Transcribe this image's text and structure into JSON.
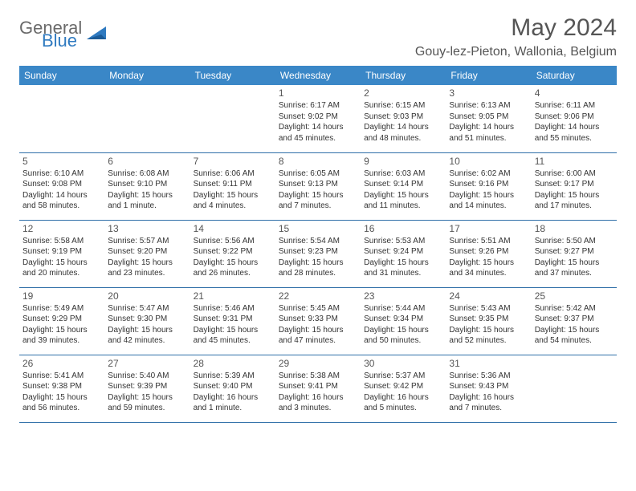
{
  "logo": {
    "text_general": "General",
    "text_blue": "Blue"
  },
  "title": "May 2024",
  "location": "Gouy-lez-Pieton, Wallonia, Belgium",
  "colors": {
    "header_bg": "#3a87c7",
    "header_text": "#ffffff",
    "cell_border": "#2f6fa8",
    "body_text": "#333333",
    "title_text": "#555555",
    "logo_gray": "#6a6a6a",
    "logo_blue": "#2f7ac0"
  },
  "fonts": {
    "title_size_pt": 23,
    "location_size_pt": 12,
    "weekday_size_pt": 9,
    "daynum_size_pt": 9,
    "body_size_pt": 7.5
  },
  "weekdays": [
    "Sunday",
    "Monday",
    "Tuesday",
    "Wednesday",
    "Thursday",
    "Friday",
    "Saturday"
  ],
  "weeks": [
    [
      null,
      null,
      null,
      {
        "n": "1",
        "sr": "6:17 AM",
        "ss": "9:02 PM",
        "dl": "14 hours and 45 minutes."
      },
      {
        "n": "2",
        "sr": "6:15 AM",
        "ss": "9:03 PM",
        "dl": "14 hours and 48 minutes."
      },
      {
        "n": "3",
        "sr": "6:13 AM",
        "ss": "9:05 PM",
        "dl": "14 hours and 51 minutes."
      },
      {
        "n": "4",
        "sr": "6:11 AM",
        "ss": "9:06 PM",
        "dl": "14 hours and 55 minutes."
      }
    ],
    [
      {
        "n": "5",
        "sr": "6:10 AM",
        "ss": "9:08 PM",
        "dl": "14 hours and 58 minutes."
      },
      {
        "n": "6",
        "sr": "6:08 AM",
        "ss": "9:10 PM",
        "dl": "15 hours and 1 minute."
      },
      {
        "n": "7",
        "sr": "6:06 AM",
        "ss": "9:11 PM",
        "dl": "15 hours and 4 minutes."
      },
      {
        "n": "8",
        "sr": "6:05 AM",
        "ss": "9:13 PM",
        "dl": "15 hours and 7 minutes."
      },
      {
        "n": "9",
        "sr": "6:03 AM",
        "ss": "9:14 PM",
        "dl": "15 hours and 11 minutes."
      },
      {
        "n": "10",
        "sr": "6:02 AM",
        "ss": "9:16 PM",
        "dl": "15 hours and 14 minutes."
      },
      {
        "n": "11",
        "sr": "6:00 AM",
        "ss": "9:17 PM",
        "dl": "15 hours and 17 minutes."
      }
    ],
    [
      {
        "n": "12",
        "sr": "5:58 AM",
        "ss": "9:19 PM",
        "dl": "15 hours and 20 minutes."
      },
      {
        "n": "13",
        "sr": "5:57 AM",
        "ss": "9:20 PM",
        "dl": "15 hours and 23 minutes."
      },
      {
        "n": "14",
        "sr": "5:56 AM",
        "ss": "9:22 PM",
        "dl": "15 hours and 26 minutes."
      },
      {
        "n": "15",
        "sr": "5:54 AM",
        "ss": "9:23 PM",
        "dl": "15 hours and 28 minutes."
      },
      {
        "n": "16",
        "sr": "5:53 AM",
        "ss": "9:24 PM",
        "dl": "15 hours and 31 minutes."
      },
      {
        "n": "17",
        "sr": "5:51 AM",
        "ss": "9:26 PM",
        "dl": "15 hours and 34 minutes."
      },
      {
        "n": "18",
        "sr": "5:50 AM",
        "ss": "9:27 PM",
        "dl": "15 hours and 37 minutes."
      }
    ],
    [
      {
        "n": "19",
        "sr": "5:49 AM",
        "ss": "9:29 PM",
        "dl": "15 hours and 39 minutes."
      },
      {
        "n": "20",
        "sr": "5:47 AM",
        "ss": "9:30 PM",
        "dl": "15 hours and 42 minutes."
      },
      {
        "n": "21",
        "sr": "5:46 AM",
        "ss": "9:31 PM",
        "dl": "15 hours and 45 minutes."
      },
      {
        "n": "22",
        "sr": "5:45 AM",
        "ss": "9:33 PM",
        "dl": "15 hours and 47 minutes."
      },
      {
        "n": "23",
        "sr": "5:44 AM",
        "ss": "9:34 PM",
        "dl": "15 hours and 50 minutes."
      },
      {
        "n": "24",
        "sr": "5:43 AM",
        "ss": "9:35 PM",
        "dl": "15 hours and 52 minutes."
      },
      {
        "n": "25",
        "sr": "5:42 AM",
        "ss": "9:37 PM",
        "dl": "15 hours and 54 minutes."
      }
    ],
    [
      {
        "n": "26",
        "sr": "5:41 AM",
        "ss": "9:38 PM",
        "dl": "15 hours and 56 minutes."
      },
      {
        "n": "27",
        "sr": "5:40 AM",
        "ss": "9:39 PM",
        "dl": "15 hours and 59 minutes."
      },
      {
        "n": "28",
        "sr": "5:39 AM",
        "ss": "9:40 PM",
        "dl": "16 hours and 1 minute."
      },
      {
        "n": "29",
        "sr": "5:38 AM",
        "ss": "9:41 PM",
        "dl": "16 hours and 3 minutes."
      },
      {
        "n": "30",
        "sr": "5:37 AM",
        "ss": "9:42 PM",
        "dl": "16 hours and 5 minutes."
      },
      {
        "n": "31",
        "sr": "5:36 AM",
        "ss": "9:43 PM",
        "dl": "16 hours and 7 minutes."
      },
      null
    ]
  ],
  "labels": {
    "sunrise": "Sunrise:",
    "sunset": "Sunset:",
    "daylight": "Daylight:"
  }
}
